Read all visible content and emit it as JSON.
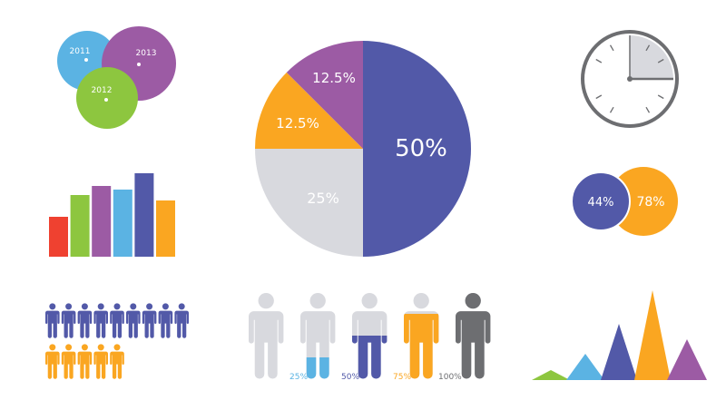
{
  "colors": {
    "blue": "#5bb3e3",
    "purple": "#9c5ba4",
    "green": "#8dc63f",
    "red": "#ef4130",
    "indigo": "#5259a8",
    "orange": "#faa621",
    "gray": "#d8d9de",
    "dark": "#6d6e71"
  },
  "chart_data": [
    {
      "type": "bubble",
      "labels": [
        "2011",
        "2012",
        "2013"
      ],
      "colors": [
        "#5bb3e3",
        "#8dc63f",
        "#9c5ba4"
      ]
    },
    {
      "type": "bar",
      "values": [
        44,
        68,
        78,
        74,
        92,
        62
      ],
      "colors": [
        "#ef4130",
        "#8dc63f",
        "#9c5ba4",
        "#5bb3e3",
        "#5259a8",
        "#faa621"
      ]
    },
    {
      "type": "pie",
      "slices": [
        {
          "label": "50%",
          "value": 50,
          "color": "#5259a8"
        },
        {
          "label": "25%",
          "value": 25,
          "color": "#d8d9de"
        },
        {
          "label": "12.5%",
          "value": 12.5,
          "color": "#faa621"
        },
        {
          "label": "12.5%",
          "value": 12.5,
          "color": "#9c5ba4"
        }
      ]
    },
    {
      "type": "clock",
      "filled_fraction": 0.25
    },
    {
      "type": "venn",
      "sets": [
        {
          "label": "44%",
          "color": "#5259a8"
        },
        {
          "label": "78%",
          "color": "#faa621"
        }
      ]
    },
    {
      "type": "pictogram",
      "rows": [
        {
          "count": 9,
          "color": "#5259a8"
        },
        {
          "count": 5,
          "color": "#faa621"
        }
      ]
    },
    {
      "type": "pictogram-fill",
      "figures": [
        {
          "label": "",
          "fill": 0,
          "color": "#d8d9de"
        },
        {
          "label": "25%",
          "fill": 25,
          "color": "#5bb3e3"
        },
        {
          "label": "50%",
          "fill": 50,
          "color": "#5259a8"
        },
        {
          "label": "75%",
          "fill": 75,
          "color": "#faa621"
        },
        {
          "label": "100%",
          "fill": 100,
          "color": "#6d6e71"
        }
      ]
    },
    {
      "type": "triangle",
      "values": [
        11,
        29,
        62,
        99,
        45
      ],
      "colors": [
        "#8dc63f",
        "#5bb3e3",
        "#5259a8",
        "#faa621",
        "#9c5ba4"
      ]
    }
  ]
}
